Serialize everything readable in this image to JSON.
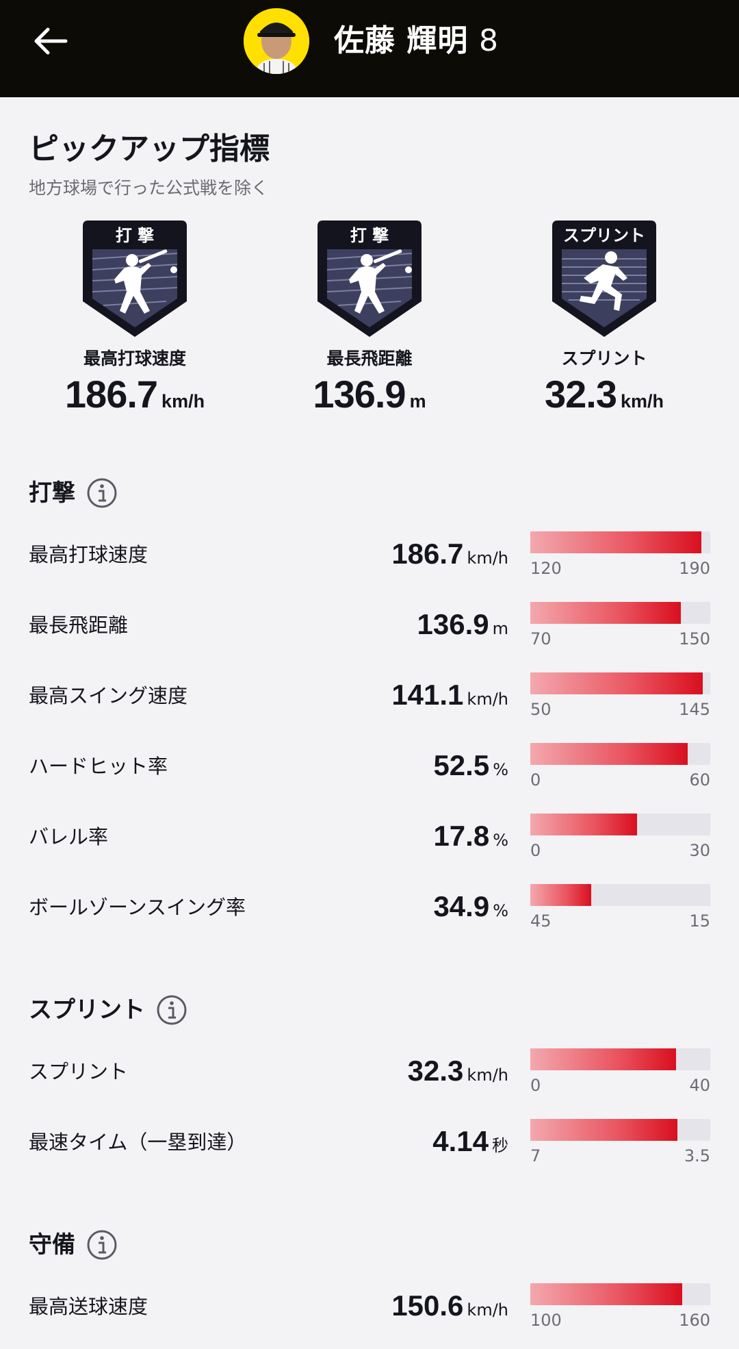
{
  "header": {
    "player_name": "佐藤 輝明",
    "player_number": "8"
  },
  "pickup": {
    "title": "ピックアップ指標",
    "subtitle": "地方球場で行った公式戦を除く",
    "items": [
      {
        "badge_label": "打 撃",
        "label": "最高打球速度",
        "value": "186.7",
        "unit": "km/h",
        "icon": "batter-icon"
      },
      {
        "badge_label": "打 撃",
        "label": "最長飛距離",
        "value": "136.9",
        "unit": "m",
        "icon": "batter-icon"
      },
      {
        "badge_label": "スプリント",
        "label": "スプリント",
        "value": "32.3",
        "unit": "km/h",
        "icon": "runner-icon"
      }
    ]
  },
  "batting": {
    "title": "打撃",
    "rows": [
      {
        "label": "最高打球速度",
        "value": "186.7",
        "unit": "km/h",
        "min": "120",
        "max": "190",
        "fill": 0.95
      },
      {
        "label": "最長飛距離",
        "value": "136.9",
        "unit": "m",
        "min": "70",
        "max": "150",
        "fill": 0.836
      },
      {
        "label": "最高スイング速度",
        "value": "141.1",
        "unit": "km/h",
        "min": "50",
        "max": "145",
        "fill": 0.959
      },
      {
        "label": "ハードヒット率",
        "value": "52.5",
        "unit": "%",
        "min": "0",
        "max": "60",
        "fill": 0.875
      },
      {
        "label": "バレル率",
        "value": "17.8",
        "unit": "%",
        "min": "0",
        "max": "30",
        "fill": 0.593
      },
      {
        "label": "ボールゾーンスイング率",
        "value": "34.9",
        "unit": "%",
        "min": "45",
        "max": "15",
        "fill": 0.337
      }
    ]
  },
  "sprint": {
    "title": "スプリント",
    "rows": [
      {
        "label": "スプリント",
        "value": "32.3",
        "unit": "km/h",
        "min": "0",
        "max": "40",
        "fill": 0.808
      },
      {
        "label": "最速タイム（一塁到達）",
        "value": "4.14",
        "unit": "秒",
        "min": "7",
        "max": "3.5",
        "fill": 0.817
      }
    ]
  },
  "defense": {
    "title": "守備",
    "rows": [
      {
        "label": "最高送球速度",
        "value": "150.6",
        "unit": "km/h",
        "min": "100",
        "max": "160",
        "fill": 0.843
      }
    ]
  },
  "colors": {
    "header_bg": "#0c0b05",
    "avatar_bg": "#ffe000",
    "bar_fill_end": "#d90f1f",
    "bar_track": "#e4e4ea"
  }
}
